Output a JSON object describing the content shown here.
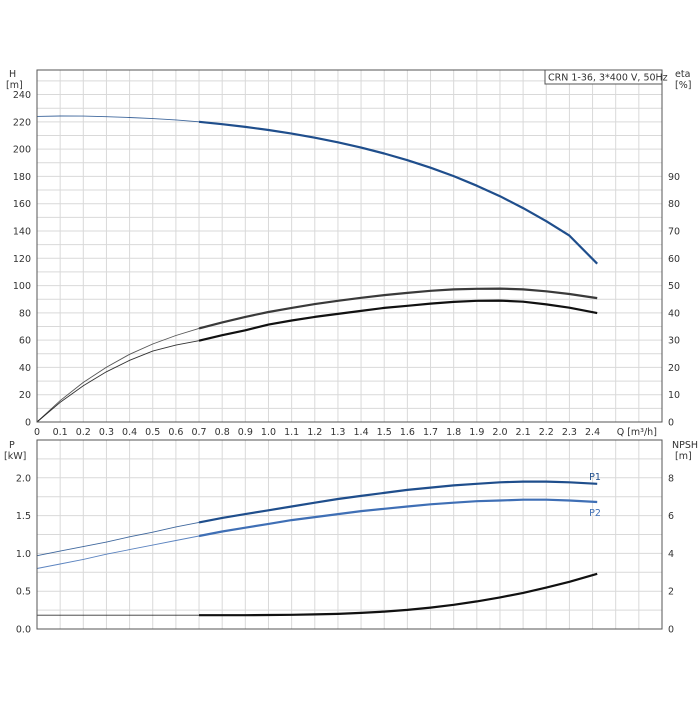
{
  "chart_data": [
    {
      "type": "line",
      "panel": "head-efficiency",
      "title": "CRN 1-36, 3*400 V, 50Hz",
      "xlabel": "Q [m³/h]",
      "ylabel": [
        "H",
        "[m]"
      ],
      "y2label": [
        "eta",
        "[%]"
      ],
      "x_ticks": [
        "0",
        "0.1",
        "0.2",
        "0.3",
        "0.4",
        "0.5",
        "0.6",
        "0.7",
        "0.8",
        "0.9",
        "1.0",
        "1.1",
        "1.2",
        "1.3",
        "1.4",
        "1.5",
        "1.6",
        "1.7",
        "1.8",
        "1.9",
        "2.0",
        "2.1",
        "2.2",
        "2.3",
        "2.4"
      ],
      "y_ticks": [
        "0",
        "20",
        "40",
        "60",
        "80",
        "100",
        "120",
        "140",
        "160",
        "180",
        "200",
        "220",
        "240"
      ],
      "y2_ticks": [
        "0",
        "10",
        "20",
        "30",
        "40",
        "50",
        "60",
        "70",
        "80",
        "90"
      ],
      "xlim": [
        0,
        2.7
      ],
      "ylim": [
        0,
        258
      ],
      "y2lim": [
        0,
        129
      ],
      "grid": true,
      "series": [
        {
          "axis": "left",
          "color": "#1f4e8c",
          "x": [
            0,
            0.1,
            0.2,
            0.3,
            0.4,
            0.5,
            0.6,
            0.7,
            0.8,
            0.9,
            1.0,
            1.1,
            1.2,
            1.3,
            1.4,
            1.5,
            1.6,
            1.7,
            1.8,
            1.9,
            2.0,
            2.1,
            2.2,
            2.3,
            2.42
          ],
          "y": [
            224,
            224.3,
            224.2,
            223.8,
            223.2,
            222.4,
            221.4,
            220,
            218.3,
            216.3,
            214,
            211.4,
            208.4,
            205,
            201.1,
            196.8,
            191.9,
            186.4,
            180.2,
            173.2,
            165.5,
            156.8,
            147.2,
            136.6,
            116
          ]
        },
        {
          "axis": "right",
          "color": "#3a3a3a",
          "x": [
            0,
            0.1,
            0.2,
            0.3,
            0.4,
            0.5,
            0.6,
            0.7,
            0.8,
            0.9,
            1.0,
            1.1,
            1.2,
            1.3,
            1.4,
            1.5,
            1.6,
            1.7,
            1.8,
            1.9,
            2.0,
            2.1,
            2.2,
            2.3,
            2.42
          ],
          "y": [
            0,
            7.8,
            14.5,
            20.1,
            24.8,
            28.6,
            31.7,
            34.3,
            36.5,
            38.5,
            40.3,
            41.8,
            43.2,
            44.4,
            45.5,
            46.5,
            47.3,
            48.1,
            48.6,
            48.8,
            48.9,
            48.6,
            47.9,
            46.9,
            45.4
          ]
        },
        {
          "axis": "right",
          "color": "#111111",
          "x": [
            0,
            0.1,
            0.2,
            0.3,
            0.4,
            0.5,
            0.6,
            0.7,
            0.8,
            0.9,
            1.0,
            1.1,
            1.2,
            1.3,
            1.4,
            1.5,
            1.6,
            1.7,
            1.8,
            1.9,
            2.0,
            2.1,
            2.2,
            2.3,
            2.42
          ],
          "y": [
            0,
            7.2,
            13.3,
            18.4,
            22.6,
            26,
            28.2,
            29.8,
            31.8,
            33.6,
            35.7,
            37.2,
            38.5,
            39.6,
            40.7,
            41.8,
            42.6,
            43.4,
            44,
            44.4,
            44.5,
            44.1,
            43.1,
            41.9,
            39.9
          ]
        }
      ]
    },
    {
      "type": "line",
      "panel": "power-npsh",
      "xlim": [
        0,
        2.7
      ],
      "ylabel": [
        "P",
        "[kW]"
      ],
      "y2label": [
        "NPSH",
        "[m]"
      ],
      "y_ticks": [
        "0.0",
        "0.5",
        "1.0",
        "1.5",
        "2.0"
      ],
      "y2_ticks": [
        "0",
        "2",
        "4",
        "6",
        "8"
      ],
      "ylim": [
        0,
        2.5
      ],
      "y2lim": [
        0,
        10
      ],
      "grid": true,
      "series": [
        {
          "name": "P1",
          "axis": "left",
          "color": "#1f4e8c",
          "x": [
            0,
            0.1,
            0.2,
            0.3,
            0.4,
            0.5,
            0.6,
            0.7,
            0.8,
            0.9,
            1.0,
            1.1,
            1.2,
            1.3,
            1.4,
            1.5,
            1.6,
            1.7,
            1.8,
            1.9,
            2.0,
            2.1,
            2.2,
            2.3,
            2.42
          ],
          "y": [
            0.97,
            1.03,
            1.09,
            1.15,
            1.22,
            1.28,
            1.35,
            1.41,
            1.47,
            1.52,
            1.57,
            1.62,
            1.67,
            1.72,
            1.76,
            1.8,
            1.84,
            1.87,
            1.9,
            1.92,
            1.94,
            1.95,
            1.95,
            1.94,
            1.92
          ]
        },
        {
          "name": "P2",
          "axis": "left",
          "color": "#3f6fb5",
          "x": [
            0,
            0.1,
            0.2,
            0.3,
            0.4,
            0.5,
            0.6,
            0.7,
            0.8,
            0.9,
            1.0,
            1.1,
            1.2,
            1.3,
            1.4,
            1.5,
            1.6,
            1.7,
            1.8,
            1.9,
            2.0,
            2.1,
            2.2,
            2.3,
            2.42
          ],
          "y": [
            0.8,
            0.86,
            0.92,
            0.99,
            1.05,
            1.11,
            1.17,
            1.23,
            1.29,
            1.34,
            1.39,
            1.44,
            1.48,
            1.52,
            1.56,
            1.59,
            1.62,
            1.65,
            1.67,
            1.69,
            1.7,
            1.71,
            1.71,
            1.7,
            1.68
          ]
        },
        {
          "axis": "right",
          "color": "#111111",
          "x": [
            0,
            0.1,
            0.2,
            0.3,
            0.4,
            0.5,
            0.6,
            0.7,
            0.8,
            0.9,
            1.0,
            1.1,
            1.2,
            1.3,
            1.4,
            1.5,
            1.6,
            1.7,
            1.8,
            1.9,
            2.0,
            2.1,
            2.2,
            2.3,
            2.42
          ],
          "y": [
            0.73,
            0.73,
            0.73,
            0.73,
            0.73,
            0.73,
            0.73,
            0.73,
            0.73,
            0.73,
            0.74,
            0.75,
            0.77,
            0.8,
            0.85,
            0.92,
            1.01,
            1.13,
            1.28,
            1.46,
            1.67,
            1.91,
            2.19,
            2.5,
            2.92
          ]
        }
      ]
    }
  ]
}
